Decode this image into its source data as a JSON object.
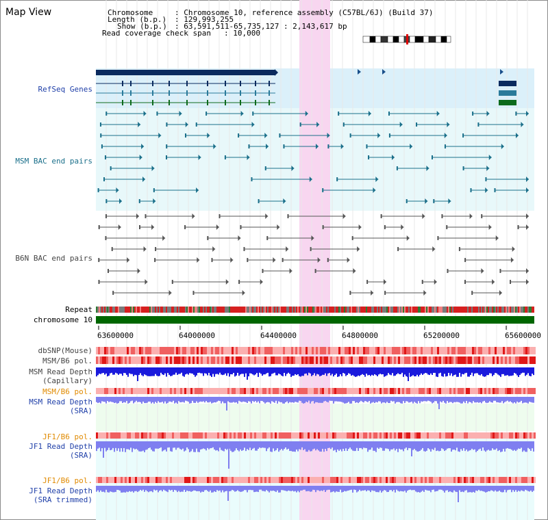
{
  "view": {
    "title": "Map View"
  },
  "info": {
    "chromosome_label": "Chromosome",
    "chromosome_value": ": Chromosome 10, reference assembly (C57BL/6J) (Build 37)",
    "length_label": "Length (b.p.)",
    "length_value": ": 129,993,255",
    "show_label": "Show (b.p.)",
    "show_value": ": 63,591,511-65,735,127 : 2,143,617 bp",
    "coverage_label": "Read coverage check span",
    "coverage_value": ": 10,000"
  },
  "tracks": {
    "refseq": "RefSeq Genes",
    "msm_bac": "MSM BAC end pairs",
    "b6n_bac": "B6N BAC end pairs",
    "repeat": "Repeat",
    "chromosome": "chromosome 10",
    "dbsnp": "dbSNP(Mouse)",
    "msm_b6_pol_1": "MSM/B6 pol.",
    "msm_depth_cap_1": "MSM Read Depth",
    "msm_depth_cap_2": "(Capillary)",
    "msm_b6_pol_2": "MSM/B6 pol.",
    "msm_depth_sra_1": "MSM Read Depth",
    "msm_depth_sra_2": "(SRA)",
    "jf1_b6_pol_1": "JF1/B6 pol.",
    "jf1_depth_sra_1": "JF1 Read Depth",
    "jf1_depth_sra_2": "(SRA)",
    "jf1_b6_pol_2": "JF1/B6 pol.",
    "jf1_depth_trim_1": "JF1 Read Depth",
    "jf1_depth_trim_2": "(SRA trimmed)"
  },
  "axis": {
    "ticks": [
      "63600000",
      "64000000",
      "64400000",
      "64800000",
      "65200000",
      "65600000"
    ]
  },
  "colors": {
    "refseq_bg": "#dbf0fa",
    "msm_bg": "#e8f8fa",
    "highlight": "#f8d6f0",
    "chromosome": "#006600",
    "msm_bac": "#1a6f8a",
    "b6n_bac": "#555555",
    "depth_blue": "#1a1adc",
    "depth_light": "#7f7ff0",
    "pol_red": "#f03a3a"
  }
}
